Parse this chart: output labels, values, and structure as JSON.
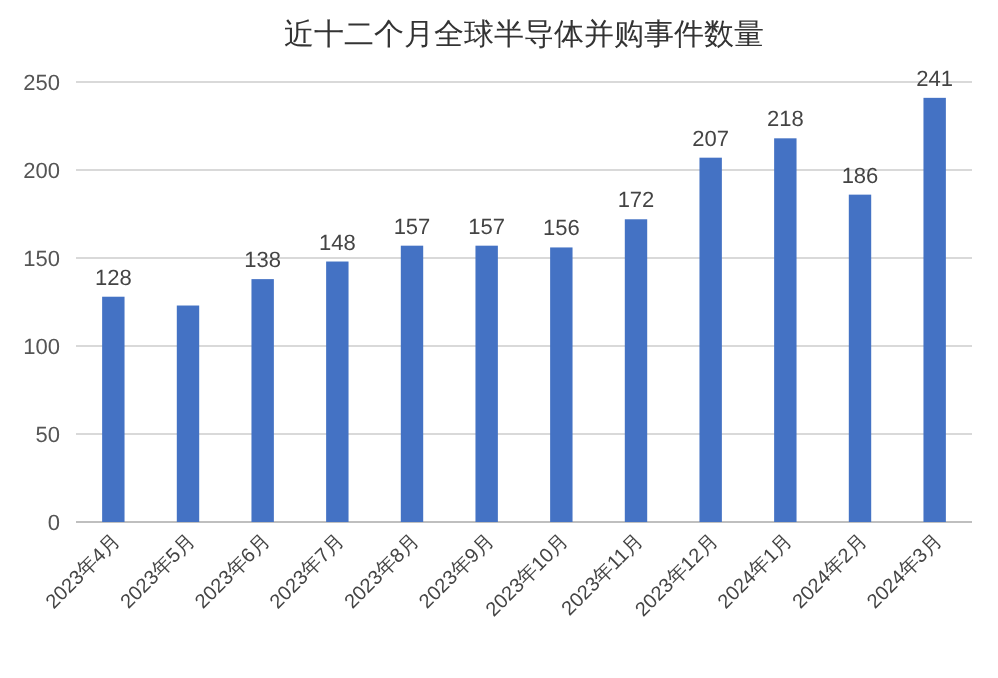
{
  "chart_data": {
    "type": "bar",
    "title": "近十二个月全球半导体并购事件数量",
    "categories": [
      "2023年4月",
      "2023年5月",
      "2023年6月",
      "2023年7月",
      "2023年8月",
      "2023年9月",
      "2023年10月",
      "2023年11月",
      "2023年12月",
      "2024年1月",
      "2024年2月",
      "2024年3月"
    ],
    "values": [
      128,
      123,
      138,
      148,
      157,
      157,
      156,
      172,
      207,
      218,
      186,
      241
    ],
    "value_labels": [
      "128",
      null,
      "138",
      "148",
      "157",
      "157",
      "156",
      "172",
      "207",
      "218",
      "186",
      "241"
    ],
    "color": "#4472c4",
    "ylim": [
      0,
      250
    ],
    "yticks": [
      0,
      50,
      100,
      150,
      200,
      250
    ],
    "grid": "y"
  }
}
